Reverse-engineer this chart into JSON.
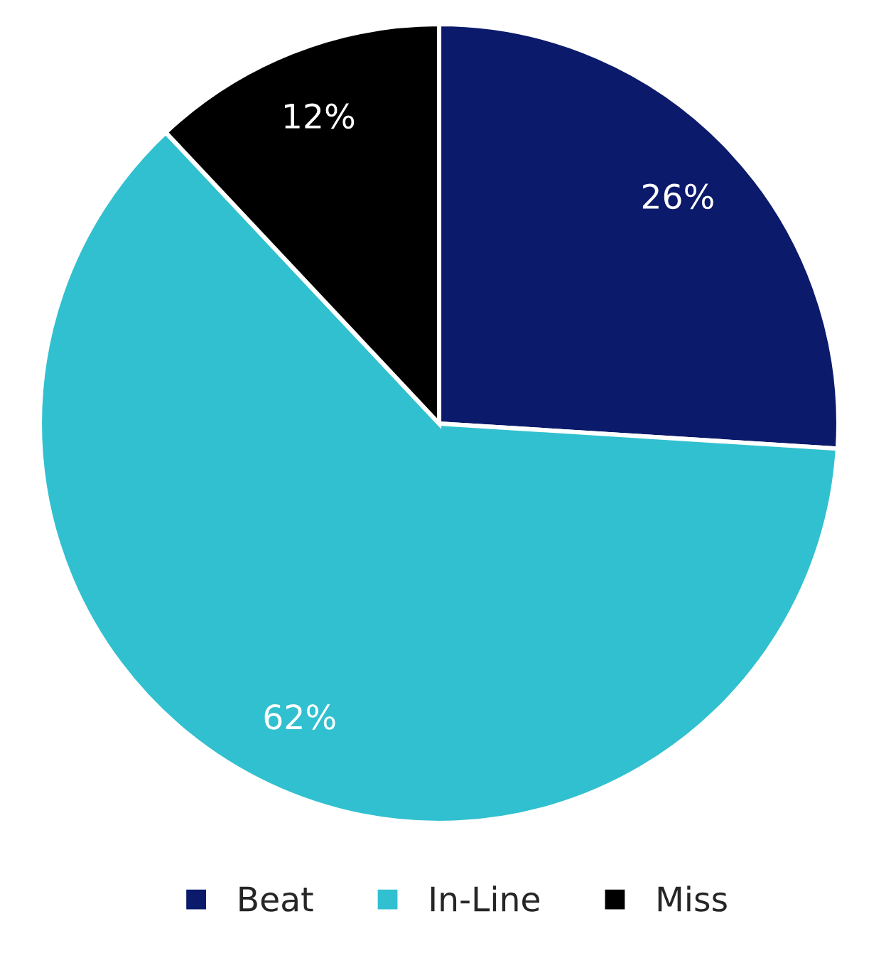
{
  "chart_data": {
    "type": "pie",
    "categories": [
      "Beat",
      "In-Line",
      "Miss"
    ],
    "values": [
      26,
      62,
      12
    ],
    "colors": [
      "#0b1a6b",
      "#31c0cf",
      "#000000"
    ],
    "value_labels": [
      "26%",
      "62%",
      "12%"
    ],
    "legend": "bottom"
  }
}
